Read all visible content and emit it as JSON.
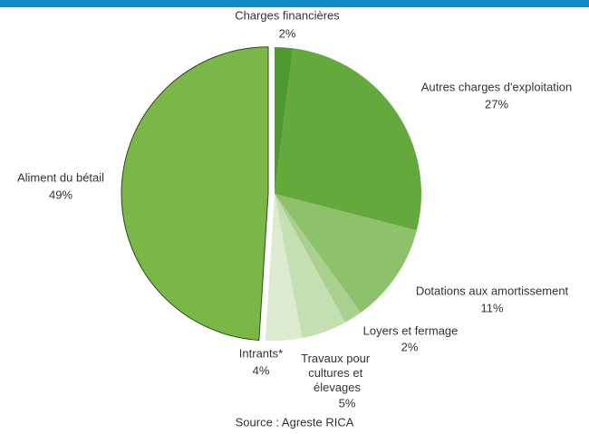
{
  "chart_data": {
    "type": "pie",
    "categories": [
      "Charges financières",
      "Autres charges d'exploitation",
      "Dotations aux amortissement",
      "Loyers et fermage",
      "Travaux pour cultures et élevages",
      "Intrants*",
      "Aliment du bétail"
    ],
    "values": [
      2,
      27,
      11,
      2,
      5,
      4,
      49
    ],
    "value_labels": [
      "2%",
      "27%",
      "11%",
      "2%",
      "5%",
      "4%",
      "49%"
    ],
    "colors": [
      "#4f9a2f",
      "#63a93c",
      "#8dc16b",
      "#a9d08f",
      "#c4dfb1",
      "#dcebd0",
      "#7ab648"
    ],
    "source": "Source : Agreste RICA"
  }
}
